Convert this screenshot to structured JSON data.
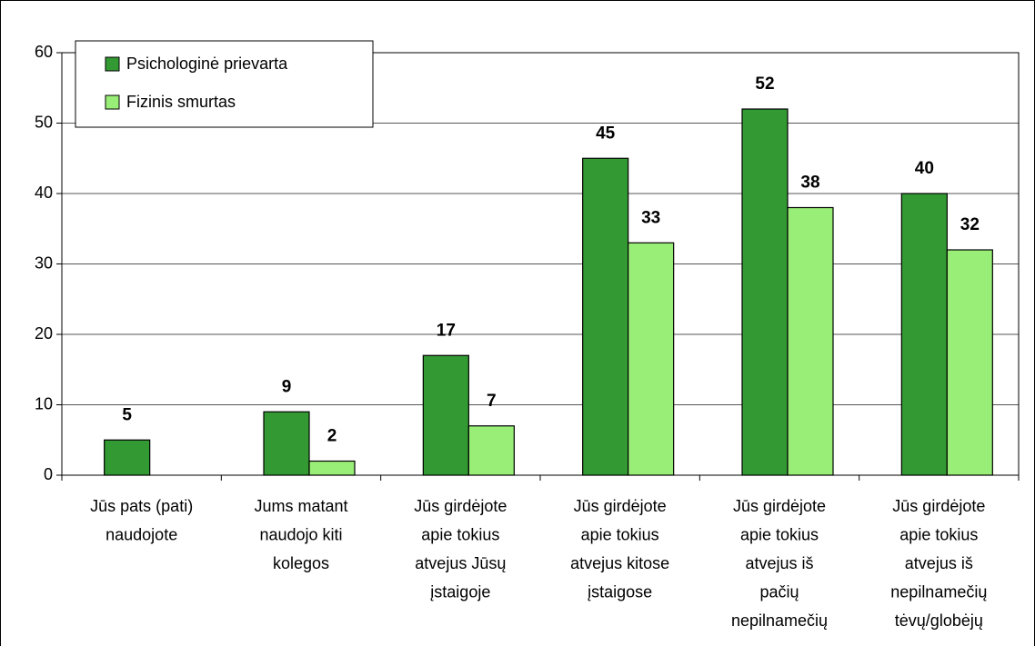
{
  "chart_data": {
    "type": "bar",
    "categories": [
      "Jūs pats (pati)\nnaudojote",
      "Jums matant\nnaudojo kiti\nkolegos",
      "Jūs girdėjote\napie tokius\natvejus Jūsų\nįstaigoje",
      "Jūs girdėjote\napie tokius\natvejus kitose\nįstaigose",
      "Jūs girdėjote\napie tokius\natvejus iš\npačių\nnepilnamečių",
      "Jūs girdėjote\napie tokius\natvejus iš\nnepilnamečių\ntėvų/globėjų"
    ],
    "series": [
      {
        "name": "Psichologinė prievarta",
        "color": "#339933",
        "values": [
          5,
          9,
          17,
          45,
          52,
          40
        ]
      },
      {
        "name": "Fizinis smurtas",
        "color": "#99ee77",
        "values": [
          null,
          2,
          7,
          33,
          38,
          32
        ]
      }
    ],
    "ylim": [
      0,
      60
    ],
    "yticks": [
      0,
      10,
      20,
      30,
      40,
      50,
      60
    ],
    "grid": true,
    "legend": "top-left"
  }
}
